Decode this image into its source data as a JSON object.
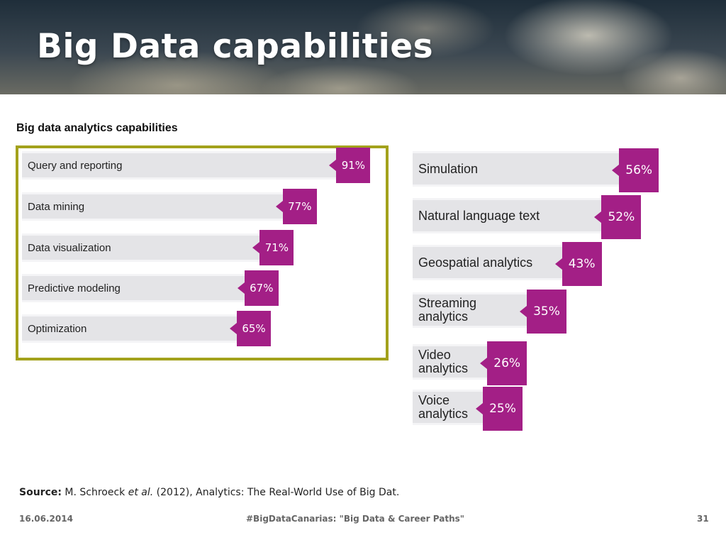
{
  "slide": {
    "title": "Big Data capabilities",
    "source_label": "Source:",
    "source_author": "M. Schroeck ",
    "source_etal": "et al.",
    "source_rest": " (2012), Analytics: The Real-World Use of Big Dat."
  },
  "footer": {
    "date": "16.06.2014",
    "center": "#BigDataCanarias: \"Big Data & Career Paths\"",
    "page": "31"
  },
  "chart_data": {
    "type": "bar",
    "title": "Big data analytics capabilities",
    "highlight_color": "#a3a21c",
    "tag_color": "#a31f86",
    "bar_color": "#e4e4e7",
    "groups": [
      {
        "highlighted": true,
        "categories": [
          "Query and reporting",
          "Data mining",
          "Data visualization",
          "Predictive modeling",
          "Optimization"
        ],
        "values": [
          91,
          77,
          71,
          67,
          65
        ],
        "labels": [
          "91%",
          "77%",
          "71%",
          "67%",
          "65%"
        ]
      },
      {
        "highlighted": false,
        "categories": [
          "Simulation",
          "Natural language text",
          "Geospatial analytics",
          "Streaming\nanalytics",
          "Video\nanalytics",
          "Voice\nanalytics"
        ],
        "values": [
          56,
          52,
          43,
          35,
          26,
          25
        ],
        "labels": [
          "56%",
          "52%",
          "43%",
          "35%",
          "26%",
          "25%"
        ]
      }
    ]
  }
}
